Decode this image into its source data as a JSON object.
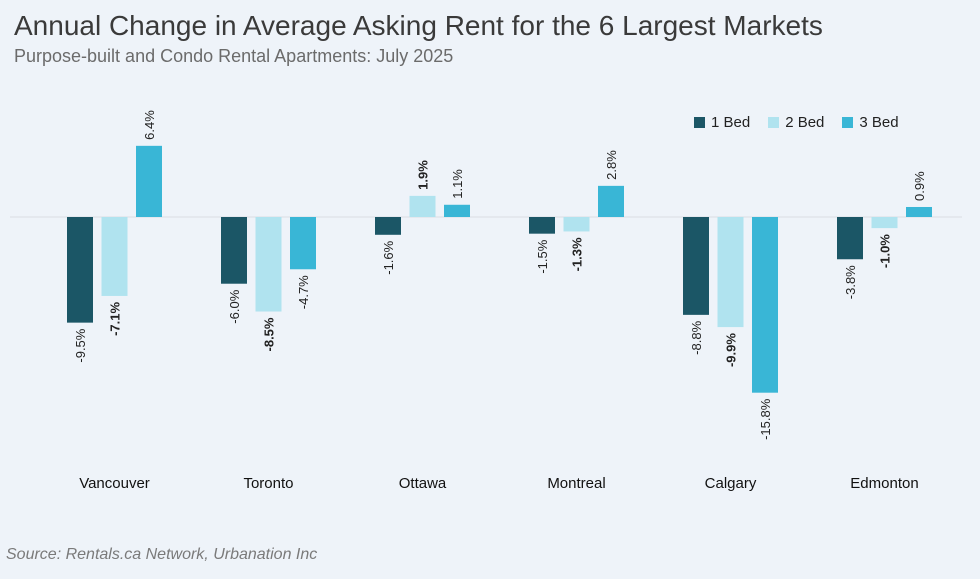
{
  "title": "Annual Change in Average Asking Rent for the 6 Largest Markets",
  "subtitle": "Purpose-built and Condo Rental Apartments: July 2025",
  "source": "Source: Rentals.ca Network, Urbanation Inc",
  "colors": {
    "bed1": "#1b5666",
    "bed2": "#b0e3ef",
    "bed3": "#39b6d6",
    "zero_line": "#d9dde3"
  },
  "chart_data": {
    "type": "bar",
    "categories": [
      "Vancouver",
      "Toronto",
      "Ottawa",
      "Montreal",
      "Calgary",
      "Edmonton"
    ],
    "series": [
      {
        "name": "1 Bed",
        "values": [
          -9.5,
          -6.0,
          -1.6,
          -1.5,
          -8.8,
          -3.8
        ],
        "labels": [
          "-9.5%",
          "-6.0%",
          "-1.6%",
          "-1.5%",
          "-8.8%",
          "-3.8%"
        ],
        "bold": [
          false,
          false,
          false,
          false,
          false,
          false
        ]
      },
      {
        "name": "2 Bed",
        "values": [
          -7.1,
          -8.5,
          1.9,
          -1.3,
          -9.9,
          -1.0
        ],
        "labels": [
          "-7.1%",
          "-8.5%",
          "1.9%",
          "-1.3%",
          "-9.9%",
          "-1.0%"
        ],
        "bold": [
          true,
          true,
          true,
          true,
          true,
          true
        ]
      },
      {
        "name": "3 Bed",
        "values": [
          6.4,
          -4.7,
          1.1,
          2.8,
          -15.8,
          0.9
        ],
        "labels": [
          "6.4%",
          "-4.7%",
          "1.1%",
          "2.8%",
          "-15.8%",
          "0.9%"
        ],
        "bold": [
          false,
          false,
          false,
          false,
          false,
          false
        ]
      }
    ],
    "legend_position": "top-right",
    "grid": false
  }
}
